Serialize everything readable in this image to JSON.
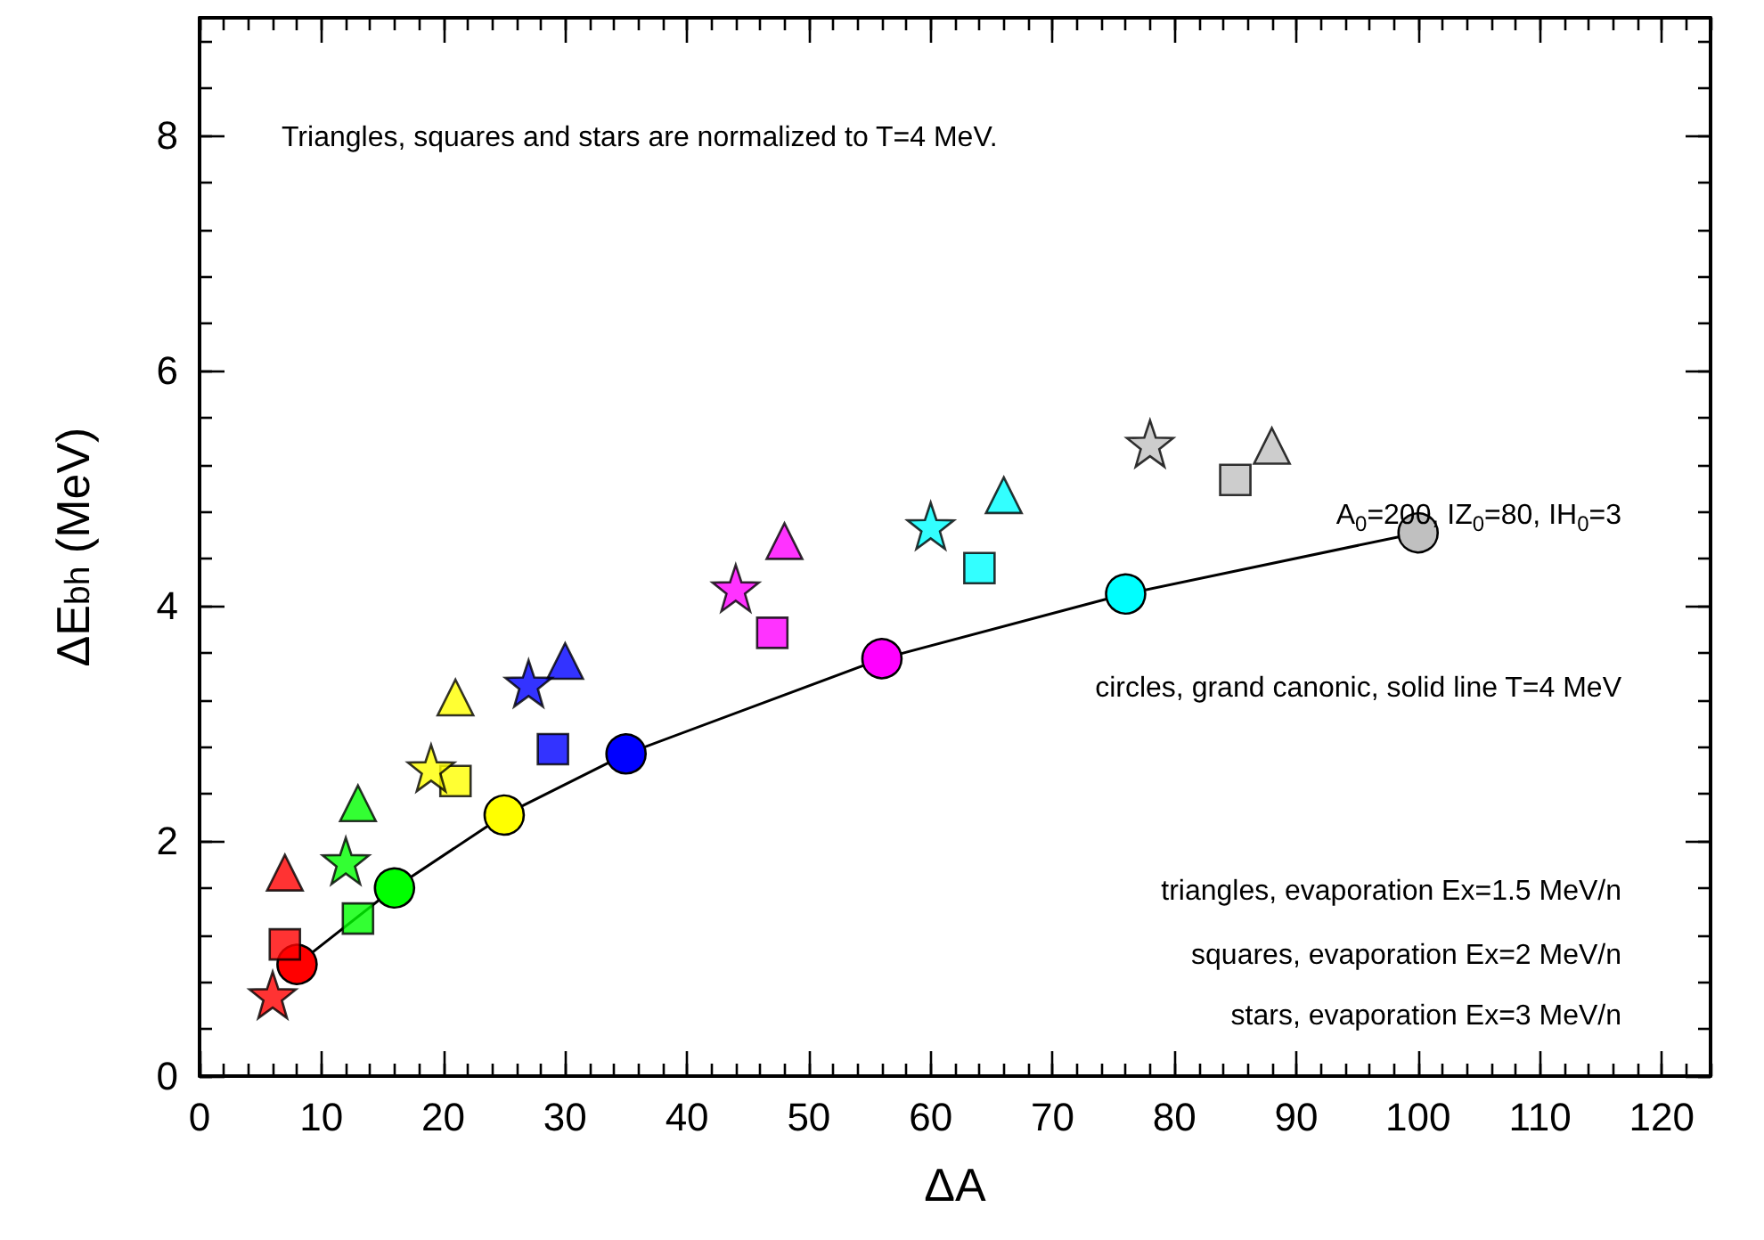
{
  "chart_data": {
    "type": "scatter",
    "xlabel": "ΔA",
    "ylabel": "ΔE$_{bh}$ (MeV)",
    "xlim": [
      0,
      124
    ],
    "xticks": [
      0,
      10,
      20,
      30,
      40,
      50,
      60,
      70,
      80,
      90,
      100,
      110,
      120
    ],
    "ylim": [
      0,
      9
    ],
    "yticks": [
      0,
      2,
      4,
      6,
      8
    ],
    "grid": false,
    "annotations": [
      "Triangles, squares and stars are normalized to  T=4 MeV.",
      "A$_{0}$=200, IZ$_{0}$=80, IH$_{0}$=3",
      "circles, grand canonic, solid line T=4 MeV",
      "triangles, evaporation Ex=1.5 MeV/n",
      "squares, evaporation Ex=2 MeV/n",
      "stars, evaporation Ex=3 MeV/n"
    ],
    "series": [
      {
        "type": "line",
        "marker": "circle",
        "line_style": "solid",
        "color": "#000000",
        "x": [
          8,
          16,
          25,
          35,
          56,
          76,
          100
        ],
        "values": [
          0.95,
          1.6,
          2.22,
          2.74,
          3.55,
          4.1,
          4.62
        ],
        "colors": [
          "#ff0000",
          "#00ff00",
          "#ffff00",
          "#0000ff",
          "#ff00ff",
          "#00ffff",
          "#c0c0c0"
        ]
      },
      {
        "marker": "triangle",
        "x": [
          7,
          13,
          21,
          30,
          48,
          66,
          88
        ],
        "values": [
          1.73,
          2.32,
          3.22,
          3.53,
          4.55,
          4.94,
          5.36
        ],
        "colors": [
          "#ff0000",
          "#00ff00",
          "#ffff00",
          "#0000ff",
          "#ff00ff",
          "#00ffff",
          "#c0c0c0"
        ]
      },
      {
        "marker": "square",
        "x": [
          7,
          13,
          21,
          29,
          47,
          64,
          85
        ],
        "values": [
          1.12,
          1.34,
          2.51,
          2.78,
          3.77,
          4.32,
          5.07
        ],
        "colors": [
          "#ff0000",
          "#00ff00",
          "#ffff00",
          "#0000ff",
          "#ff00ff",
          "#00ffff",
          "#c0c0c0"
        ]
      },
      {
        "marker": "star",
        "x": [
          6,
          12,
          19,
          27,
          44,
          60,
          78
        ],
        "values": [
          0.69,
          1.83,
          2.62,
          3.34,
          4.15,
          4.68,
          5.38
        ],
        "colors": [
          "#ff0000",
          "#00ff00",
          "#ffff00",
          "#0000ff",
          "#ff00ff",
          "#00ffff",
          "#c0c0c0"
        ]
      }
    ]
  }
}
